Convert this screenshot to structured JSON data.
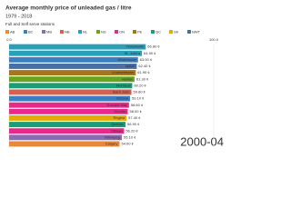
{
  "chart_data": {
    "type": "bar-race",
    "title": "Average monthly price of unleaded gas / litre",
    "subtitle": "1979 - 2018",
    "note": "Full and Self serve stations",
    "period": "2000-04",
    "legend": [
      {
        "name": "AB",
        "color": "#e8893a"
      },
      {
        "name": "BC",
        "color": "#3a7fc1"
      },
      {
        "name": "MB",
        "color": "#8c6bb1"
      },
      {
        "name": "NB",
        "color": "#d6604d"
      },
      {
        "name": "NL",
        "color": "#2a9fb8"
      },
      {
        "name": "NS",
        "color": "#66a61e"
      },
      {
        "name": "ON",
        "color": "#e7298a"
      },
      {
        "name": "PE",
        "color": "#a6761d"
      },
      {
        "name": "QC",
        "color": "#1b9e77"
      },
      {
        "name": "SK",
        "color": "#e6ab02"
      },
      {
        "name": "NWT",
        "color": "#4a6fa5"
      }
    ],
    "categories": [
      "Yellowknife",
      "St. John's",
      "Whitehorse",
      "Iqaluit",
      "Charlottetown",
      "Halifax",
      "Montreal",
      "Saint John",
      "Victoria",
      "Thunder Bay",
      "Toronto",
      "Regina",
      "Quebec",
      "Ottawa",
      "Winnipeg",
      "Calgary"
    ],
    "values": [
      66.8,
      64.9,
      63.0,
      62.4,
      61.9,
      61.3,
      60.2,
      59.8,
      59.1,
      58.6,
      58.0,
      57.4,
      56.9,
      56.2,
      55.1,
      54.0
    ],
    "value_labels": [
      "66.80 ¢",
      "64.90 ¢",
      "63.00 ¢",
      "62.40 ¢",
      "61.90 ¢",
      "61.30 ¢",
      "60.20 ¢",
      "59.80 ¢",
      "59.10 ¢",
      "58.60 ¢",
      "58.00 ¢",
      "57.40 ¢",
      "56.90 ¢",
      "56.20 ¢",
      "55.10 ¢",
      "54.00 ¢"
    ],
    "colors": [
      "#2a9fb8",
      "#2a9fb8",
      "#3a7fc1",
      "#4a6fa5",
      "#a6761d",
      "#66a61e",
      "#1b9e77",
      "#d6604d",
      "#3a7fc1",
      "#e7298a",
      "#e7298a",
      "#e6ab02",
      "#1b9e77",
      "#e7298a",
      "#8c6bb1",
      "#e8893a"
    ],
    "xlim": [
      0,
      100
    ],
    "xticks": [
      {
        "value": 0,
        "label": "0.0"
      },
      {
        "value": 100,
        "label": "100.0"
      }
    ],
    "grid": true
  }
}
